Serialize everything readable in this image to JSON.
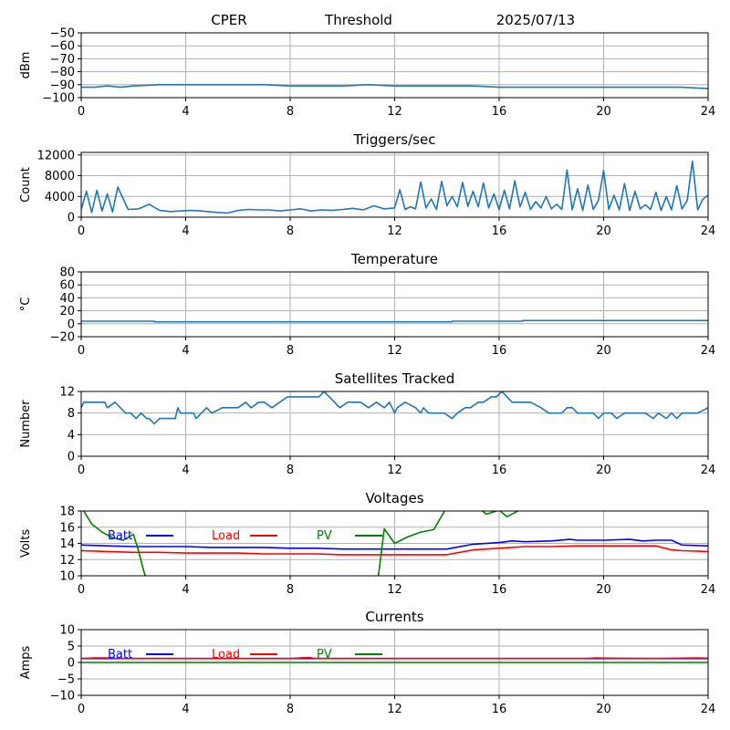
{
  "header": {
    "site": "CPER",
    "mode": "Threshold",
    "date": "2025/07/13"
  },
  "chart_data": [
    {
      "type": "line",
      "title": "",
      "xlabel": "",
      "ylabel": "dBm",
      "xlim": [
        0,
        24
      ],
      "ylim": [
        -100,
        -50
      ],
      "xticks": [
        0,
        4,
        8,
        12,
        16,
        20,
        24
      ],
      "yticks": [
        -100,
        -90,
        -80,
        -70,
        -60,
        -50
      ],
      "grid": true,
      "series": [
        {
          "color": "#1f77b4",
          "x": [
            0,
            0.5,
            1,
            1.5,
            2,
            3,
            4,
            5,
            6,
            7,
            8,
            9,
            10,
            11,
            12,
            13,
            14,
            15,
            16,
            17,
            18,
            19,
            20,
            21,
            22,
            23,
            24
          ],
          "y": [
            -92,
            -92,
            -91,
            -92,
            -91,
            -90,
            -90,
            -90,
            -90,
            -90,
            -91,
            -91,
            -91,
            -90,
            -91,
            -91,
            -91,
            -91,
            -92,
            -92,
            -92,
            -92,
            -92,
            -92,
            -92,
            -92,
            -93
          ]
        }
      ]
    },
    {
      "type": "line",
      "title": "Triggers/sec",
      "xlabel": "",
      "ylabel": "Count",
      "xlim": [
        0,
        24
      ],
      "ylim": [
        0,
        12500
      ],
      "xticks": [
        0,
        4,
        8,
        12,
        16,
        20,
        24
      ],
      "yticks": [
        0,
        4000,
        8000,
        12000
      ],
      "grid": true,
      "series": [
        {
          "color": "#1f77b4",
          "x": [
            0,
            0.2,
            0.4,
            0.6,
            0.8,
            1.0,
            1.2,
            1.4,
            1.8,
            2.2,
            2.6,
            3.0,
            3.4,
            3.8,
            4.2,
            4.6,
            5.0,
            5.6,
            6.0,
            6.4,
            6.8,
            7.2,
            7.6,
            8.0,
            8.4,
            8.8,
            9.2,
            9.6,
            10.0,
            10.4,
            10.8,
            11.2,
            11.6,
            12.0,
            12.2,
            12.4,
            12.6,
            12.8,
            13.0,
            13.2,
            13.4,
            13.6,
            13.8,
            14.0,
            14.2,
            14.4,
            14.6,
            14.8,
            15.0,
            15.2,
            15.4,
            15.6,
            15.8,
            16.0,
            16.2,
            16.4,
            16.6,
            16.8,
            17.0,
            17.2,
            17.4,
            17.6,
            17.8,
            18.0,
            18.2,
            18.4,
            18.6,
            18.8,
            19.0,
            19.2,
            19.4,
            19.6,
            19.8,
            20.0,
            20.2,
            20.4,
            20.6,
            20.8,
            21.0,
            21.2,
            21.4,
            21.6,
            21.8,
            22.0,
            22.2,
            22.4,
            22.6,
            22.8,
            23.0,
            23.2,
            23.4,
            23.6,
            23.8,
            24.0
          ],
          "y": [
            1500,
            5000,
            900,
            5200,
            1200,
            4500,
            1000,
            5800,
            1500,
            1600,
            2500,
            1300,
            1100,
            1200,
            1300,
            1200,
            1000,
            800,
            1300,
            1500,
            1400,
            1400,
            1200,
            1400,
            1600,
            1200,
            1400,
            1300,
            1500,
            1700,
            1400,
            2200,
            1600,
            1800,
            5300,
            1500,
            2000,
            1600,
            6800,
            1800,
            3500,
            1500,
            6900,
            2200,
            4000,
            2000,
            6700,
            2100,
            5000,
            2000,
            6600,
            1800,
            4500,
            1500,
            5200,
            1600,
            7000,
            2000,
            4800,
            1500,
            3000,
            1800,
            4000,
            1600,
            2500,
            1500,
            9100,
            1400,
            5500,
            1300,
            6200,
            1500,
            3200,
            9000,
            1500,
            4200,
            1400,
            6500,
            1300,
            5000,
            1600,
            2400,
            1500,
            4800,
            1300,
            4000,
            1400,
            6100,
            1600,
            3200,
            10800,
            1400,
            3500,
            4200
          ]
        }
      ]
    },
    {
      "type": "line",
      "title": "Temperature",
      "xlabel": "",
      "ylabel": "°C",
      "xlim": [
        0,
        24
      ],
      "ylim": [
        -20,
        80
      ],
      "xticks": [
        0,
        4,
        8,
        12,
        16,
        20,
        24
      ],
      "yticks": [
        -20,
        0,
        20,
        40,
        60,
        80
      ],
      "grid": true,
      "series": [
        {
          "color": "#1f77b4",
          "x": [
            0,
            2.8,
            2.8,
            14.2,
            14.2,
            16.9,
            16.9,
            24
          ],
          "y": [
            4,
            4,
            3,
            3,
            4,
            4,
            5,
            5
          ]
        }
      ]
    },
    {
      "type": "line",
      "title": "Satellites Tracked",
      "xlabel": "",
      "ylabel": "Number",
      "xlim": [
        0,
        24
      ],
      "ylim": [
        0,
        12
      ],
      "xticks": [
        0,
        4,
        8,
        12,
        16,
        20,
        24
      ],
      "yticks": [
        0,
        4,
        8,
        12
      ],
      "grid": true,
      "series": [
        {
          "color": "#1f77b4",
          "x": [
            0,
            0.1,
            0.5,
            0.9,
            1.0,
            1.3,
            1.5,
            1.7,
            1.9,
            2.1,
            2.3,
            2.5,
            2.6,
            2.8,
            3.0,
            3.6,
            3.7,
            3.8,
            4.0,
            4.3,
            4.4,
            4.6,
            4.8,
            5.0,
            5.4,
            5.6,
            5.8,
            6.0,
            6.3,
            6.5,
            6.8,
            7.0,
            7.3,
            7.6,
            7.9,
            8.2,
            8.6,
            9.1,
            9.3,
            9.5,
            9.7,
            9.9,
            10.2,
            10.5,
            10.7,
            11.0,
            11.3,
            11.6,
            11.8,
            12.0,
            12.1,
            12.4,
            12.8,
            13.0,
            13.1,
            13.3,
            13.6,
            13.9,
            14.2,
            14.4,
            14.7,
            14.9,
            15.2,
            15.4,
            15.7,
            15.9,
            16.1,
            16.3,
            16.5,
            16.9,
            17.2,
            17.6,
            17.9,
            18.1,
            18.4,
            18.6,
            18.8,
            19.0,
            19.3,
            19.6,
            19.8,
            20.0,
            20.3,
            20.5,
            20.8,
            21.0,
            21.2,
            21.4,
            21.6,
            21.9,
            22.1,
            22.4,
            22.6,
            22.8,
            23.0,
            23.3,
            23.6,
            24.0
          ],
          "y": [
            9,
            10,
            10,
            10,
            9,
            10,
            9,
            8,
            8,
            7,
            8,
            7,
            7,
            6,
            7,
            7,
            9,
            8,
            8,
            8,
            7,
            8,
            9,
            8,
            9,
            9,
            9,
            9,
            10,
            9,
            10,
            10,
            9,
            10,
            11,
            11,
            11,
            11,
            12,
            11,
            10,
            9,
            10,
            10,
            10,
            9,
            10,
            9,
            10,
            8,
            9,
            10,
            9,
            8,
            9,
            8,
            8,
            8,
            7,
            8,
            9,
            9,
            10,
            10,
            11,
            11,
            12,
            11,
            10,
            10,
            10,
            9,
            8,
            8,
            8,
            9,
            9,
            8,
            8,
            8,
            7,
            8,
            8,
            7,
            8,
            8,
            8,
            8,
            8,
            7,
            8,
            7,
            8,
            7,
            8,
            8,
            8,
            9
          ]
        }
      ]
    },
    {
      "type": "line",
      "title": "Voltages",
      "xlabel": "",
      "ylabel": "Volts",
      "xlim": [
        0,
        24
      ],
      "ylim": [
        10,
        18
      ],
      "xticks": [
        0,
        4,
        8,
        12,
        16,
        20,
        24
      ],
      "yticks": [
        10,
        12,
        14,
        16,
        18
      ],
      "grid": true,
      "legend": "top",
      "series": [
        {
          "name": "Batt",
          "color": "#0000ff",
          "x": [
            0,
            1,
            2,
            3,
            4,
            5,
            6,
            7,
            8,
            9,
            10,
            11,
            12,
            13,
            14,
            15,
            16,
            16.5,
            17,
            18,
            18.7,
            19,
            20,
            21,
            21.5,
            22,
            22.6,
            23,
            24
          ],
          "y": [
            13.8,
            13.7,
            13.6,
            13.6,
            13.6,
            13.5,
            13.5,
            13.5,
            13.4,
            13.4,
            13.3,
            13.3,
            13.3,
            13.3,
            13.3,
            13.9,
            14.1,
            14.3,
            14.2,
            14.3,
            14.5,
            14.4,
            14.4,
            14.5,
            14.3,
            14.4,
            14.4,
            13.8,
            13.7
          ]
        },
        {
          "name": "Load",
          "color": "#ff0000",
          "x": [
            0,
            1,
            2,
            3,
            4,
            5,
            6,
            7,
            8,
            9,
            10,
            11,
            12,
            13,
            14,
            15,
            16,
            17,
            18,
            19,
            20,
            21,
            22,
            22.6,
            23,
            24
          ],
          "y": [
            13.1,
            13.0,
            12.9,
            12.9,
            12.8,
            12.8,
            12.8,
            12.7,
            12.7,
            12.7,
            12.6,
            12.6,
            12.6,
            12.6,
            12.6,
            13.2,
            13.4,
            13.6,
            13.6,
            13.7,
            13.7,
            13.7,
            13.7,
            13.2,
            13.1,
            13.0
          ]
        },
        {
          "name": "PV",
          "color": "#008000",
          "x": [
            0,
            0.4,
            0.8,
            1.2,
            1.6,
            2.0,
            2.2,
            2.4,
            2.7,
            11.3,
            11.6,
            12.0,
            12.5,
            13.0,
            13.5,
            14.0,
            15.0,
            15.5,
            16.0,
            16.3,
            16.6,
            17.0
          ],
          "y": [
            18.5,
            16.4,
            15.4,
            14.7,
            14.4,
            15.1,
            13.0,
            10.5,
            8.0,
            8.0,
            15.8,
            14.0,
            14.8,
            15.4,
            15.7,
            18.5,
            19.0,
            17.6,
            18.1,
            17.3,
            17.8,
            18.5
          ]
        }
      ]
    },
    {
      "type": "line",
      "title": "Currents",
      "xlabel": "",
      "ylabel": "Amps",
      "xlim": [
        0,
        24
      ],
      "ylim": [
        -10,
        10
      ],
      "xticks": [
        0,
        4,
        8,
        12,
        16,
        20,
        24
      ],
      "yticks": [
        -10,
        -5,
        0,
        5,
        10
      ],
      "grid": true,
      "legend": "top",
      "series": [
        {
          "name": "Batt",
          "color": "#0000ff",
          "x": [
            0,
            24
          ],
          "y": [
            1.2,
            1.2
          ]
        },
        {
          "name": "Load",
          "color": "#ff0000",
          "x": [
            0,
            0.5,
            1,
            1.5,
            3,
            6,
            8,
            8.7,
            9,
            12,
            16,
            19.3,
            19.7,
            20.2,
            22,
            23.5,
            24
          ],
          "y": [
            1.2,
            1.4,
            1.4,
            1.2,
            1.2,
            1.2,
            1.2,
            1.5,
            1.2,
            1.2,
            1.2,
            1.2,
            1.4,
            1.3,
            1.2,
            1.4,
            1.3
          ]
        },
        {
          "name": "PV",
          "color": "#008000",
          "x": [
            0,
            24
          ],
          "y": [
            0,
            0
          ]
        }
      ]
    }
  ]
}
